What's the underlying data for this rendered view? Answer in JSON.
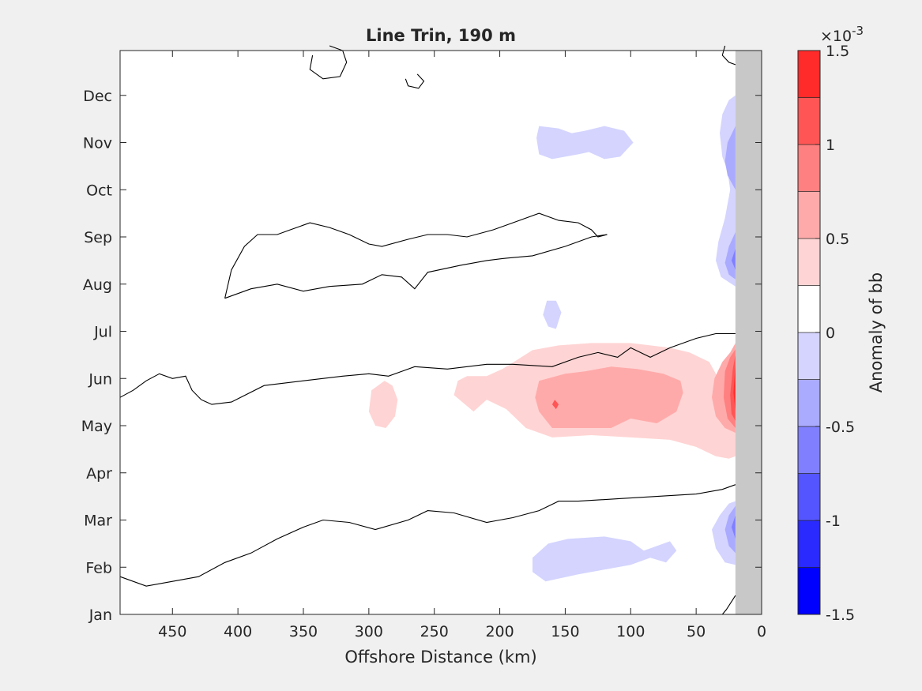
{
  "chart_data": {
    "type": "heatmap",
    "title": "Line Trin, 190 m",
    "xlabel": "Offshore Distance (km)",
    "ylabel": "",
    "xlim": [
      490,
      0
    ],
    "x_reversed": true,
    "x_ticks": [
      450,
      400,
      350,
      300,
      250,
      200,
      150,
      100,
      50,
      0
    ],
    "y_ticks": [
      "Jan",
      "Feb",
      "Mar",
      "Apr",
      "May",
      "Jun",
      "Jul",
      "Aug",
      "Sep",
      "Oct",
      "Nov",
      "Dec"
    ],
    "land_mask_x": [
      20,
      0
    ],
    "colorbar": {
      "label": "Anomaly of bb",
      "exponent_label": "×10",
      "exponent_power": "-3",
      "limits": [
        -1.5,
        1.5
      ],
      "tick_values": [
        -1.5,
        -1,
        -0.5,
        0,
        0.5,
        1,
        1.5
      ],
      "tick_labels": [
        "-1.5",
        "-1",
        "-0.5",
        "0",
        "0.5",
        "1",
        "1.5"
      ],
      "levels": [
        -1.5,
        -1.25,
        -1.0,
        -0.75,
        -0.5,
        -0.25,
        0,
        0.25,
        0.5,
        0.75,
        1.0,
        1.25,
        1.5
      ],
      "colors": [
        "#0000ff",
        "#2a2aff",
        "#5555ff",
        "#8080ff",
        "#aaaaff",
        "#d4d4ff",
        "#ffffff",
        "#ffffff",
        "#ffd4d4",
        "#ffaaaa",
        "#ff8080",
        "#ff5555",
        "#ff2a2a",
        "#ff0000"
      ]
    },
    "filled_regions": [
      {
        "level": 0.25,
        "color": "#ffd4d4",
        "points": [
          [
            192,
            5.3
          ],
          [
            175,
            5.6
          ],
          [
            155,
            5.7
          ],
          [
            130,
            5.75
          ],
          [
            100,
            5.75
          ],
          [
            70,
            5.65
          ],
          [
            55,
            5.55
          ],
          [
            40,
            5.35
          ],
          [
            33,
            5.0
          ],
          [
            28,
            4.9
          ],
          [
            25,
            5.0
          ],
          [
            22,
            5.25
          ],
          [
            20,
            5.5
          ],
          [
            20,
            3.35
          ],
          [
            25,
            3.3
          ],
          [
            35,
            3.35
          ],
          [
            50,
            3.55
          ],
          [
            70,
            3.7
          ],
          [
            100,
            3.75
          ],
          [
            130,
            3.8
          ],
          [
            160,
            3.75
          ],
          [
            180,
            3.95
          ],
          [
            195,
            4.35
          ],
          [
            210,
            4.55
          ],
          [
            220,
            4.3
          ],
          [
            235,
            4.65
          ],
          [
            232,
            4.95
          ],
          [
            225,
            5.05
          ],
          [
            210,
            5.05
          ],
          [
            198,
            5.2
          ]
        ]
      },
      {
        "level": 0.25,
        "color": "#ffd4d4",
        "points": [
          [
            288,
            4.95
          ],
          [
            282,
            4.85
          ],
          [
            278,
            4.55
          ],
          [
            280,
            4.2
          ],
          [
            287,
            3.95
          ],
          [
            295,
            4.0
          ],
          [
            300,
            4.3
          ],
          [
            298,
            4.75
          ]
        ]
      },
      {
        "level": 0.5,
        "color": "#ffaaaa",
        "points": [
          [
            170,
            4.95
          ],
          [
            150,
            5.1
          ],
          [
            135,
            5.15
          ],
          [
            115,
            5.25
          ],
          [
            95,
            5.2
          ],
          [
            75,
            5.1
          ],
          [
            62,
            4.95
          ],
          [
            60,
            4.7
          ],
          [
            65,
            4.3
          ],
          [
            80,
            4.05
          ],
          [
            100,
            4.15
          ],
          [
            115,
            3.95
          ],
          [
            140,
            3.95
          ],
          [
            160,
            3.95
          ],
          [
            170,
            4.3
          ],
          [
            173,
            4.6
          ]
        ]
      },
      {
        "level": 0.5,
        "color": "#ffaaaa",
        "points": [
          [
            20,
            5.75
          ],
          [
            24,
            5.55
          ],
          [
            30,
            5.35
          ],
          [
            36,
            5.0
          ],
          [
            38,
            4.6
          ],
          [
            35,
            4.2
          ],
          [
            28,
            3.95
          ],
          [
            20,
            3.85
          ]
        ]
      },
      {
        "level": 0.75,
        "color": "#ff8080",
        "points": [
          [
            20,
            5.62
          ],
          [
            24,
            5.45
          ],
          [
            28,
            5.15
          ],
          [
            29,
            4.6
          ],
          [
            26,
            4.15
          ],
          [
            20,
            3.95
          ]
        ]
      },
      {
        "level": 1.0,
        "color": "#ff5555",
        "points": [
          [
            158,
            4.55
          ],
          [
            155,
            4.45
          ],
          [
            157,
            4.35
          ],
          [
            160,
            4.45
          ]
        ]
      },
      {
        "level": 1.0,
        "color": "#ff5555",
        "points": [
          [
            20,
            5.5
          ],
          [
            22,
            5.2
          ],
          [
            24,
            4.65
          ],
          [
            23,
            4.25
          ],
          [
            20,
            4.1
          ]
        ]
      },
      {
        "level": 1.25,
        "color": "#ff2a2a",
        "points": [
          [
            20,
            5.3
          ],
          [
            21.5,
            4.7
          ],
          [
            20,
            4.3
          ]
        ]
      },
      {
        "level": -0.25,
        "color": "#d4d4ff",
        "points": [
          [
            20,
            11.0
          ],
          [
            25,
            10.9
          ],
          [
            30,
            10.6
          ],
          [
            32,
            10.2
          ],
          [
            30,
            9.7
          ],
          [
            26,
            9.4
          ],
          [
            24,
            9.0
          ],
          [
            28,
            8.4
          ],
          [
            33,
            7.9
          ],
          [
            35,
            7.5
          ],
          [
            31,
            7.15
          ],
          [
            20,
            6.95
          ]
        ]
      },
      {
        "level": -0.25,
        "color": "#d4d4ff",
        "points": [
          [
            170,
            10.35
          ],
          [
            155,
            10.3
          ],
          [
            145,
            10.2
          ],
          [
            135,
            10.25
          ],
          [
            120,
            10.35
          ],
          [
            105,
            10.25
          ],
          [
            98,
            10.0
          ],
          [
            108,
            9.7
          ],
          [
            120,
            9.65
          ],
          [
            132,
            9.8
          ],
          [
            140,
            9.75
          ],
          [
            160,
            9.65
          ],
          [
            170,
            9.75
          ],
          [
            172,
            10.1
          ]
        ]
      },
      {
        "level": -0.25,
        "color": "#d4d4ff",
        "points": [
          [
            164,
            6.65
          ],
          [
            157,
            6.65
          ],
          [
            153,
            6.4
          ],
          [
            157,
            6.05
          ],
          [
            163,
            6.1
          ],
          [
            167,
            6.35
          ]
        ]
      },
      {
        "level": -0.25,
        "color": "#d4d4ff",
        "points": [
          [
            20,
            2.4
          ],
          [
            25,
            2.35
          ],
          [
            32,
            2.1
          ],
          [
            38,
            1.8
          ],
          [
            35,
            1.4
          ],
          [
            28,
            1.1
          ],
          [
            20,
            1.05
          ]
        ]
      },
      {
        "level": -0.25,
        "color": "#d4d4ff",
        "points": [
          [
            163,
            1.5
          ],
          [
            148,
            1.6
          ],
          [
            120,
            1.65
          ],
          [
            100,
            1.55
          ],
          [
            90,
            1.35
          ],
          [
            80,
            1.45
          ],
          [
            70,
            1.55
          ],
          [
            65,
            1.35
          ],
          [
            73,
            1.1
          ],
          [
            85,
            1.2
          ],
          [
            100,
            1.05
          ],
          [
            120,
            0.95
          ],
          [
            140,
            0.85
          ],
          [
            165,
            0.7
          ],
          [
            175,
            0.9
          ],
          [
            175,
            1.2
          ]
        ]
      },
      {
        "level": -0.5,
        "color": "#aaaaff",
        "points": [
          [
            20,
            10.35
          ],
          [
            26,
            10.0
          ],
          [
            28,
            9.6
          ],
          [
            26,
            9.3
          ],
          [
            20,
            9.0
          ]
        ]
      },
      {
        "level": -0.5,
        "color": "#aaaaff",
        "points": [
          [
            20,
            8.1
          ],
          [
            25,
            7.8
          ],
          [
            28,
            7.45
          ],
          [
            25,
            7.2
          ],
          [
            20,
            7.1
          ]
        ]
      },
      {
        "level": -0.5,
        "color": "#aaaaff",
        "points": [
          [
            20,
            2.3
          ],
          [
            25,
            2.1
          ],
          [
            28,
            1.8
          ],
          [
            25,
            1.45
          ],
          [
            20,
            1.3
          ]
        ]
      },
      {
        "level": -0.75,
        "color": "#8080ff",
        "points": [
          [
            20,
            7.75
          ],
          [
            23,
            7.5
          ],
          [
            20,
            7.3
          ]
        ]
      },
      {
        "level": -0.75,
        "color": "#8080ff",
        "points": [
          [
            20,
            2.1
          ],
          [
            23,
            1.85
          ],
          [
            20,
            1.6
          ]
        ]
      }
    ],
    "zero_contours": [
      {
        "level": 0,
        "points": [
          [
            490,
            4.6
          ],
          [
            480,
            4.75
          ],
          [
            470,
            4.95
          ],
          [
            460,
            5.1
          ],
          [
            450,
            5.0
          ],
          [
            440,
            5.05
          ],
          [
            435,
            4.75
          ],
          [
            428,
            4.55
          ],
          [
            420,
            4.45
          ],
          [
            405,
            4.5
          ],
          [
            380,
            4.85
          ],
          [
            350,
            4.95
          ],
          [
            320,
            5.05
          ],
          [
            300,
            5.1
          ],
          [
            285,
            5.05
          ],
          [
            265,
            5.25
          ],
          [
            240,
            5.2
          ],
          [
            210,
            5.3
          ],
          [
            190,
            5.3
          ],
          [
            160,
            5.25
          ],
          [
            140,
            5.45
          ],
          [
            125,
            5.55
          ],
          [
            110,
            5.45
          ],
          [
            100,
            5.65
          ],
          [
            85,
            5.45
          ],
          [
            70,
            5.65
          ],
          [
            50,
            5.85
          ],
          [
            35,
            5.95
          ],
          [
            20,
            5.95
          ]
        ]
      },
      {
        "level": 0,
        "points": [
          [
            490,
            0.8
          ],
          [
            470,
            0.6
          ],
          [
            450,
            0.7
          ],
          [
            430,
            0.8
          ],
          [
            410,
            1.1
          ],
          [
            390,
            1.3
          ],
          [
            370,
            1.6
          ],
          [
            350,
            1.85
          ],
          [
            335,
            2.0
          ],
          [
            315,
            1.95
          ],
          [
            295,
            1.8
          ],
          [
            270,
            2.0
          ],
          [
            255,
            2.2
          ],
          [
            235,
            2.15
          ],
          [
            210,
            1.95
          ],
          [
            190,
            2.05
          ],
          [
            170,
            2.2
          ],
          [
            155,
            2.4
          ],
          [
            140,
            2.4
          ],
          [
            110,
            2.45
          ],
          [
            80,
            2.5
          ],
          [
            50,
            2.55
          ],
          [
            30,
            2.65
          ],
          [
            20,
            2.75
          ]
        ]
      },
      {
        "level": 0,
        "points": [
          [
            410,
            6.7
          ],
          [
            405,
            7.3
          ],
          [
            395,
            7.8
          ],
          [
            385,
            8.05
          ],
          [
            370,
            8.05
          ],
          [
            360,
            8.15
          ],
          [
            345,
            8.3
          ],
          [
            330,
            8.2
          ],
          [
            315,
            8.05
          ],
          [
            300,
            7.85
          ],
          [
            290,
            7.8
          ],
          [
            270,
            7.95
          ],
          [
            255,
            8.05
          ],
          [
            240,
            8.05
          ],
          [
            225,
            8.0
          ],
          [
            205,
            8.15
          ],
          [
            185,
            8.35
          ],
          [
            170,
            8.5
          ],
          [
            155,
            8.35
          ],
          [
            140,
            8.3
          ],
          [
            130,
            8.15
          ],
          [
            125,
            8.0
          ],
          [
            118,
            8.05
          ],
          [
            130,
            8.0
          ],
          [
            150,
            7.8
          ],
          [
            175,
            7.6
          ],
          [
            195,
            7.55
          ],
          [
            210,
            7.5
          ],
          [
            230,
            7.4
          ],
          [
            255,
            7.25
          ],
          [
            265,
            6.9
          ],
          [
            275,
            7.15
          ],
          [
            290,
            7.2
          ],
          [
            305,
            7.0
          ],
          [
            330,
            6.95
          ],
          [
            350,
            6.85
          ],
          [
            370,
            7.0
          ],
          [
            390,
            6.9
          ],
          [
            410,
            6.7
          ]
        ]
      },
      {
        "level": 0,
        "points": [
          [
            330,
            12.05
          ],
          [
            320,
            11.95
          ],
          [
            317,
            11.7
          ],
          [
            322,
            11.4
          ],
          [
            335,
            11.35
          ],
          [
            345,
            11.55
          ],
          [
            343,
            11.85
          ]
        ]
      },
      {
        "level": 0,
        "points": [
          [
            263,
            11.45
          ],
          [
            258,
            11.3
          ],
          [
            262,
            11.15
          ],
          [
            270,
            11.2
          ],
          [
            272,
            11.35
          ]
        ]
      },
      {
        "level": 0,
        "points": [
          [
            20,
            11.65
          ],
          [
            25,
            11.7
          ],
          [
            30,
            11.85
          ],
          [
            28,
            12.05
          ]
        ]
      },
      {
        "level": 0,
        "points": [
          [
            20,
            0.4
          ],
          [
            27,
            0.1
          ],
          [
            30,
            0.0
          ]
        ]
      }
    ]
  }
}
